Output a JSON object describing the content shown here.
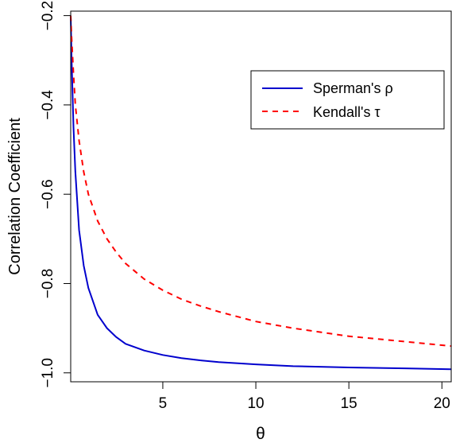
{
  "chart_data": {
    "type": "line",
    "title": "",
    "xlabel": "θ",
    "ylabel": "Correlation Coefficient",
    "xlim": [
      0.05,
      20.5
    ],
    "ylim": [
      -1.02,
      -0.19
    ],
    "x_ticks": [
      5,
      10,
      15,
      20
    ],
    "x_tick_labels": [
      "5",
      "10",
      "15",
      "20"
    ],
    "y_ticks": [
      -1.0,
      -0.8,
      -0.6,
      -0.4,
      -0.2
    ],
    "y_tick_labels": [
      "−1.0",
      "−0.8",
      "−0.6",
      "−0.4",
      "−0.2"
    ],
    "grid": false,
    "legend_position": "top-right",
    "series": [
      {
        "name": "Sperman's ρ",
        "color": "#0000cd",
        "line_style": "solid",
        "x": [
          0.05,
          0.1,
          0.2,
          0.3,
          0.5,
          0.75,
          1.0,
          1.5,
          2.0,
          2.5,
          3.0,
          4.0,
          5.0,
          6.0,
          7.0,
          8.0,
          10.0,
          12.0,
          15.0,
          18.0,
          20.5
        ],
        "y": [
          -0.2,
          -0.3,
          -0.45,
          -0.55,
          -0.68,
          -0.76,
          -0.81,
          -0.87,
          -0.9,
          -0.92,
          -0.935,
          -0.95,
          -0.96,
          -0.967,
          -0.972,
          -0.976,
          -0.981,
          -0.985,
          -0.988,
          -0.99,
          -0.992
        ]
      },
      {
        "name": "Kendall's τ",
        "color": "#ff0000",
        "line_style": "dashed",
        "x": [
          0.05,
          0.1,
          0.2,
          0.3,
          0.5,
          0.75,
          1.0,
          1.5,
          2.0,
          2.5,
          3.0,
          4.0,
          5.0,
          6.0,
          7.0,
          8.0,
          10.0,
          12.0,
          15.0,
          18.0,
          20.5
        ],
        "y": [
          -0.2,
          -0.25,
          -0.33,
          -0.4,
          -0.48,
          -0.55,
          -0.6,
          -0.66,
          -0.7,
          -0.73,
          -0.755,
          -0.79,
          -0.815,
          -0.835,
          -0.85,
          -0.863,
          -0.885,
          -0.9,
          -0.918,
          -0.93,
          -0.94
        ]
      }
    ]
  }
}
